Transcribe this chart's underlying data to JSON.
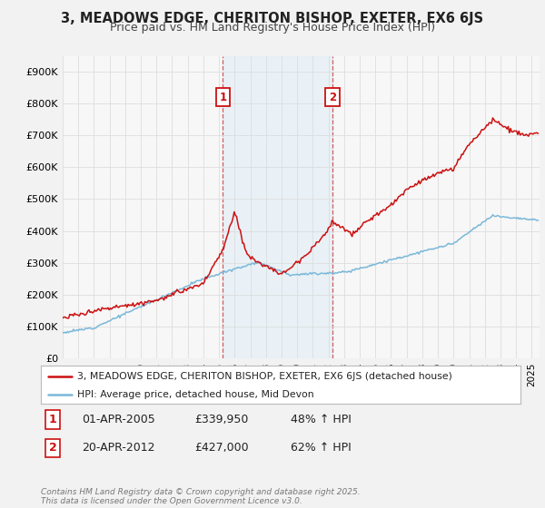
{
  "title": "3, MEADOWS EDGE, CHERITON BISHOP, EXETER, EX6 6JS",
  "subtitle": "Price paid vs. HM Land Registry's House Price Index (HPI)",
  "ylim": [
    0,
    950000
  ],
  "yticks": [
    0,
    100000,
    200000,
    300000,
    400000,
    500000,
    600000,
    700000,
    800000,
    900000
  ],
  "ytick_labels": [
    "£0",
    "£100K",
    "£200K",
    "£300K",
    "£400K",
    "£500K",
    "£600K",
    "£700K",
    "£800K",
    "£900K"
  ],
  "hpi_color": "#7ab8d9",
  "price_color": "#cc1111",
  "sale1_x": 2005.25,
  "sale1_y": 339950,
  "sale2_x": 2012.25,
  "sale2_y": 427000,
  "xmin": 1995,
  "xmax": 2025.5,
  "bg_color": "#f2f2f2",
  "plot_bg_color": "#f7f7f7",
  "grid_color": "#dddddd",
  "span_color": "#d0e8f5",
  "sale1_date": "01-APR-2005",
  "sale1_price": "£339,950",
  "sale1_pct": "48% ↑ HPI",
  "sale2_date": "20-APR-2012",
  "sale2_price": "£427,000",
  "sale2_pct": "62% ↑ HPI",
  "legend_line1": "3, MEADOWS EDGE, CHERITON BISHOP, EXETER, EX6 6JS (detached house)",
  "legend_line2": "HPI: Average price, detached house, Mid Devon",
  "footer": "Contains HM Land Registry data © Crown copyright and database right 2025.\nThis data is licensed under the Open Government Licence v3.0."
}
